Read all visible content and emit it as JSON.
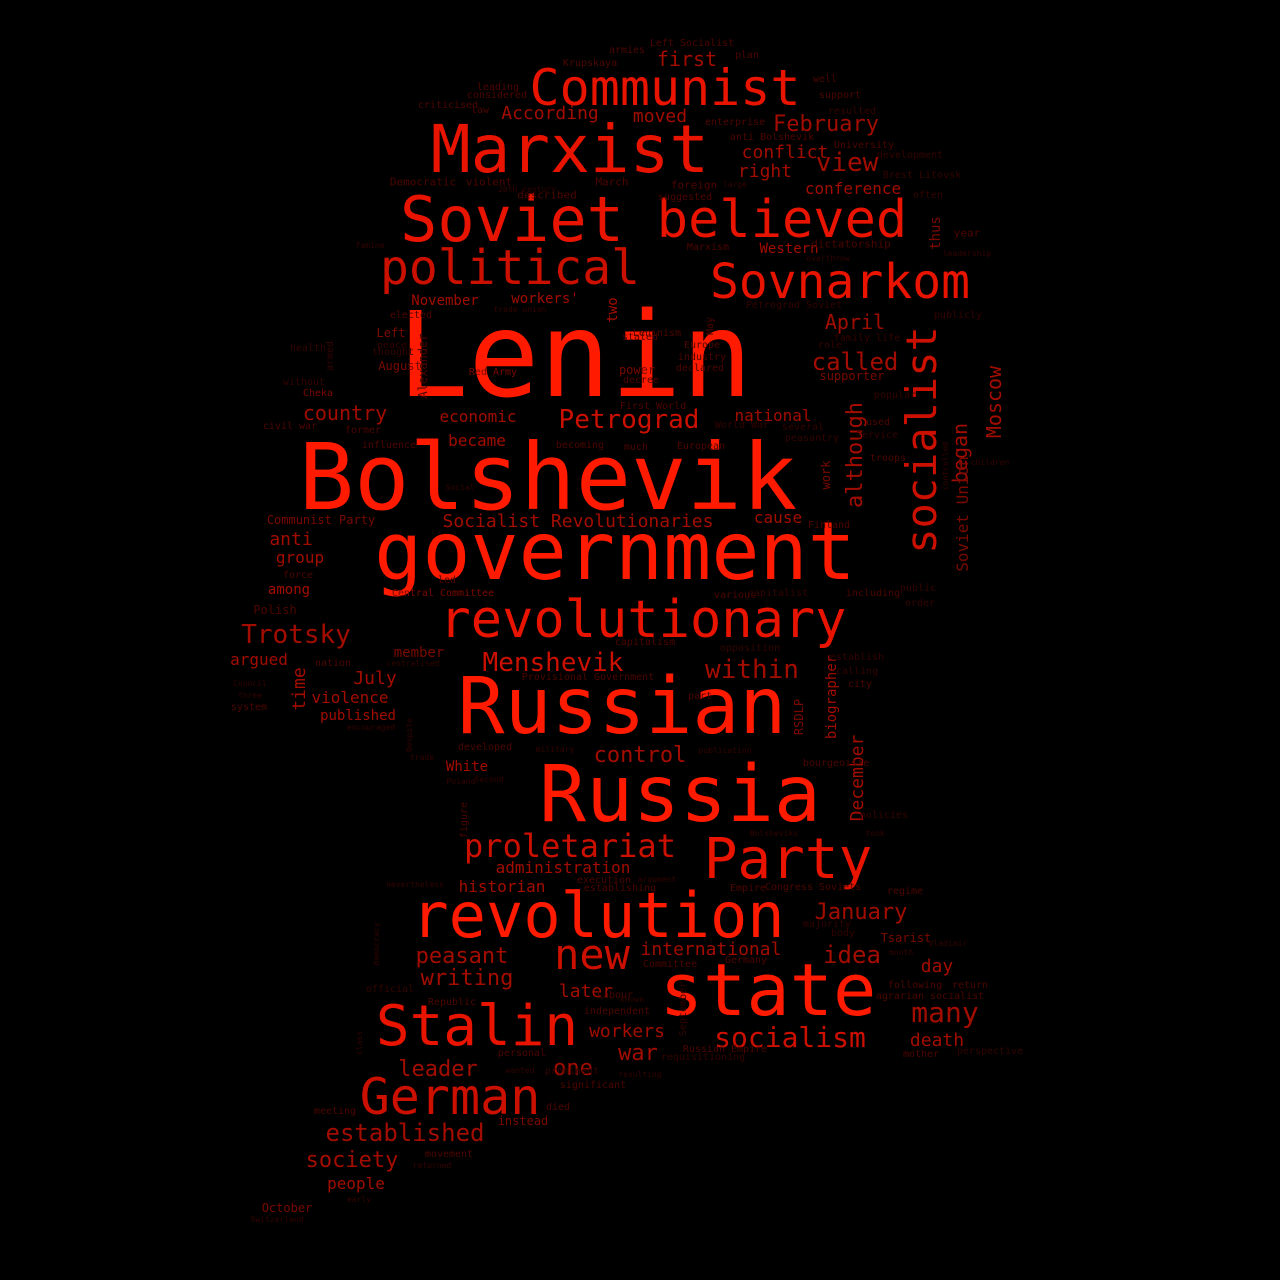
{
  "background": "#000000",
  "palette": [
    "#ff1a00",
    "#e81400",
    "#cc1000",
    "#a30d00",
    "#7a0a00",
    "#4d0600",
    "#330400"
  ],
  "words": [
    {
      "text": "Lenin"
    },
    {
      "text": "Bolshevik"
    },
    {
      "text": "government"
    },
    {
      "text": "Russian"
    },
    {
      "text": "Russia"
    },
    {
      "text": "state"
    },
    {
      "text": "revolution"
    },
    {
      "text": "Marxist"
    },
    {
      "text": "Soviet"
    },
    {
      "text": "Communist"
    },
    {
      "text": "believed"
    },
    {
      "text": "Sovnarkom"
    },
    {
      "text": "political"
    },
    {
      "text": "revolutionary"
    },
    {
      "text": "Stalin"
    },
    {
      "text": "Party"
    },
    {
      "text": "German"
    },
    {
      "text": "socialist"
    },
    {
      "text": "new"
    },
    {
      "text": "proletariat"
    },
    {
      "text": "Menshevik"
    },
    {
      "text": "Trotsky"
    },
    {
      "text": "Petrograd"
    },
    {
      "text": "socialism"
    },
    {
      "text": "established"
    },
    {
      "text": "many"
    },
    {
      "text": "idea"
    },
    {
      "text": "within"
    },
    {
      "text": "called"
    },
    {
      "text": "view"
    },
    {
      "text": "February"
    },
    {
      "text": "began"
    },
    {
      "text": "Moscow"
    },
    {
      "text": "although"
    },
    {
      "text": "control"
    },
    {
      "text": "writing"
    },
    {
      "text": "peasant"
    },
    {
      "text": "war"
    },
    {
      "text": "one"
    },
    {
      "text": "leader"
    },
    {
      "text": "society"
    },
    {
      "text": "January"
    },
    {
      "text": "April"
    },
    {
      "text": "country"
    },
    {
      "text": "Soviet Union"
    },
    {
      "text": "Socialist Revolutionaries"
    },
    {
      "text": "first"
    },
    {
      "text": "conflict"
    },
    {
      "text": "right"
    },
    {
      "text": "moved"
    },
    {
      "text": "According"
    },
    {
      "text": "international"
    },
    {
      "text": "later"
    },
    {
      "text": "workers"
    },
    {
      "text": "death"
    },
    {
      "text": "day"
    },
    {
      "text": "December"
    },
    {
      "text": "biographer"
    },
    {
      "text": "administration"
    },
    {
      "text": "historian"
    },
    {
      "text": "July"
    },
    {
      "text": "time"
    },
    {
      "text": "argued"
    },
    {
      "text": "anti"
    },
    {
      "text": "group"
    },
    {
      "text": "national"
    },
    {
      "text": "economic"
    },
    {
      "text": "became"
    },
    {
      "text": "cause"
    },
    {
      "text": "conference"
    },
    {
      "text": "Western"
    },
    {
      "text": "workers'"
    },
    {
      "text": "November"
    },
    {
      "text": "two"
    },
    {
      "text": "thus"
    },
    {
      "text": "violence"
    },
    {
      "text": "published"
    },
    {
      "text": "people"
    },
    {
      "text": "White"
    },
    {
      "text": "member"
    },
    {
      "text": "among"
    },
    {
      "text": "October"
    },
    {
      "text": "RSDLP"
    },
    {
      "text": "work"
    },
    {
      "text": "Alexander"
    },
    {
      "text": "Red Army"
    },
    {
      "text": "Communist Party"
    },
    {
      "text": "power"
    },
    {
      "text": "supporter"
    },
    {
      "text": "Left"
    },
    {
      "text": "August"
    },
    {
      "text": "Cheka"
    },
    {
      "text": "civil war"
    },
    {
      "text": "Polish"
    },
    {
      "text": "Central Committee"
    },
    {
      "text": "instead"
    },
    {
      "text": "movement"
    },
    {
      "text": "Tsarist"
    },
    {
      "text": "Germany"
    },
    {
      "text": "Labour"
    },
    {
      "text": "Democratic"
    },
    {
      "text": "violent"
    },
    {
      "text": "March"
    },
    {
      "text": "described"
    },
    {
      "text": "foreign"
    },
    {
      "text": "suggested"
    },
    {
      "text": "dictatorship"
    },
    {
      "text": "Marxism"
    },
    {
      "text": "year"
    },
    {
      "text": "University"
    },
    {
      "text": "support"
    },
    {
      "text": "resulted"
    },
    {
      "text": "plan"
    },
    {
      "text": "Left Socialist"
    },
    {
      "text": "armies"
    },
    {
      "text": "Krupskaya"
    },
    {
      "text": "leading"
    },
    {
      "text": "considered"
    },
    {
      "text": "law"
    },
    {
      "text": "criticised"
    },
    {
      "text": "well"
    },
    {
      "text": "enterprise"
    },
    {
      "text": "anti Bolshevik"
    },
    {
      "text": "Brest Litovsk"
    },
    {
      "text": "often"
    },
    {
      "text": "development"
    },
    {
      "text": "20th century"
    },
    {
      "text": "large"
    },
    {
      "text": "overthrow"
    },
    {
      "text": "leadership"
    },
    {
      "text": "famine"
    },
    {
      "text": "elected"
    },
    {
      "text": "trade union"
    },
    {
      "text": "Leninism"
    },
    {
      "text": "Petrograd Soviet"
    },
    {
      "text": "May"
    },
    {
      "text": "stated"
    },
    {
      "text": "Europe"
    },
    {
      "text": "industry"
    },
    {
      "text": "declared"
    },
    {
      "text": "publicly"
    },
    {
      "text": "role"
    },
    {
      "text": "family life"
    },
    {
      "text": "armed"
    },
    {
      "text": "health"
    },
    {
      "text": "without"
    },
    {
      "text": "peace"
    },
    {
      "text": "thought"
    },
    {
      "text": "decree"
    },
    {
      "text": "First World"
    },
    {
      "text": "World War"
    },
    {
      "text": "several"
    },
    {
      "text": "used"
    },
    {
      "text": "Service"
    },
    {
      "text": "popular"
    },
    {
      "text": "peasantry"
    },
    {
      "text": "troops"
    },
    {
      "text": "European"
    },
    {
      "text": "much"
    },
    {
      "text": "becoming"
    },
    {
      "text": "influence"
    },
    {
      "text": "former"
    },
    {
      "text": "Social"
    },
    {
      "text": "led"
    },
    {
      "text": "force"
    },
    {
      "text": "various"
    },
    {
      "text": "capitalist"
    },
    {
      "text": "including"
    },
    {
      "text": "public"
    },
    {
      "text": "order"
    },
    {
      "text": "Finland"
    },
    {
      "text": "establish"
    },
    {
      "text": "calling"
    },
    {
      "text": "city"
    },
    {
      "text": "capitalism"
    },
    {
      "text": "opposition"
    },
    {
      "text": "Provisional Government"
    },
    {
      "text": "nation"
    },
    {
      "text": "centralised"
    },
    {
      "text": "part"
    },
    {
      "text": "Council"
    },
    {
      "text": "three"
    },
    {
      "text": "system"
    },
    {
      "text": "encouraged"
    },
    {
      "text": "developed"
    },
    {
      "text": "military"
    },
    {
      "text": "publication"
    },
    {
      "text": "bourgeoisie"
    },
    {
      "text": "trade"
    },
    {
      "text": "Despite"
    },
    {
      "text": "Poland"
    },
    {
      "text": "Second"
    },
    {
      "text": "figure"
    },
    {
      "text": "policies"
    },
    {
      "text": "took"
    },
    {
      "text": "Bolsheviks"
    },
    {
      "text": "Congress Soviets"
    },
    {
      "text": "regime"
    },
    {
      "text": "Empire"
    },
    {
      "text": "execution"
    },
    {
      "text": "argument"
    },
    {
      "text": "establishing"
    },
    {
      "text": "nevertheless"
    },
    {
      "text": "majority"
    },
    {
      "text": "body"
    },
    {
      "text": "month"
    },
    {
      "text": "Vladimir"
    },
    {
      "text": "following"
    },
    {
      "text": "return"
    },
    {
      "text": "agrarian socialist"
    },
    {
      "text": "Committee"
    },
    {
      "text": "known"
    },
    {
      "text": "independent"
    },
    {
      "text": "Republic"
    },
    {
      "text": "official"
    },
    {
      "text": "September"
    },
    {
      "text": "Russian Empire"
    },
    {
      "text": "requisitioning"
    },
    {
      "text": "personal"
    },
    {
      "text": "resulting"
    },
    {
      "text": "mother"
    },
    {
      "text": "perspective"
    },
    {
      "text": "significant"
    },
    {
      "text": "prominent"
    },
    {
      "text": "wanted"
    },
    {
      "text": "died"
    },
    {
      "text": "meeting"
    },
    {
      "text": "returned"
    },
    {
      "text": "early"
    },
    {
      "text": "Switzerland"
    },
    {
      "text": "class"
    },
    {
      "text": "democracy"
    },
    {
      "text": "children"
    },
    {
      "text": "controlled"
    }
  ]
}
